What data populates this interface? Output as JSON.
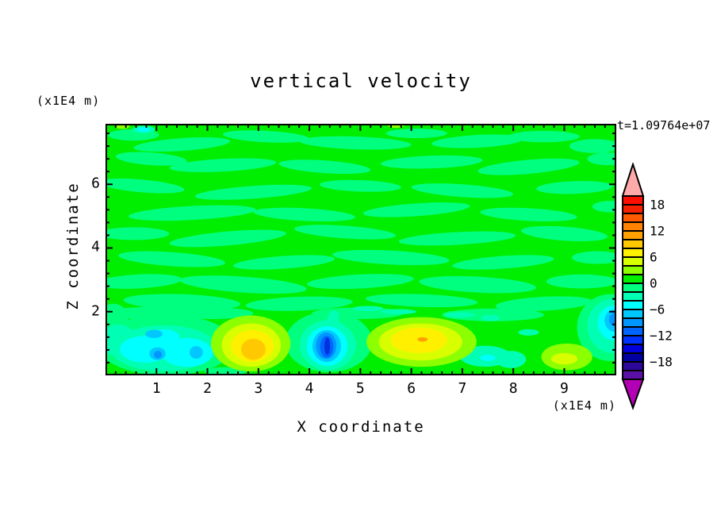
{
  "figure": {
    "title": "vertical velocity",
    "time_annotation": "t=1.09764e+07",
    "x_axis_title": "X coordinate",
    "z_axis_title": "Z coordinate",
    "x_axis_unit": "(x1E4 m)",
    "z_axis_unit": "(x1E4 m)"
  },
  "chart_data": {
    "type": "heatmap",
    "subtype": "filled-contour",
    "title": "vertical velocity",
    "xlabel": "X coordinate",
    "ylabel": "Z coordinate",
    "axis_units": "(x1E4 m)",
    "annotation": "t=1.09764e+07",
    "xlim": [
      0,
      10.02
    ],
    "zlim": [
      0,
      7.9
    ],
    "x_tick_labels": [
      1,
      2,
      3,
      4,
      5,
      6,
      7,
      8,
      9
    ],
    "z_tick_labels": [
      2,
      4,
      6
    ],
    "x_minor_step": 0.2,
    "z_minor_step": 0.4,
    "grid": false,
    "legend_position": "right-colorbar",
    "contour_interval": 2,
    "field_summary": "Near-zero vertical velocity (levels between -2 and +2) over most of the domain in mottled horizontal streaks; strong features confined below z=2: downdrafts near x=1 (about -8), x=4.4 (about -14) and right edge (about -10); updrafts near x=2.9 (about +10), x=6.2 (about +10, local +12 spot) and x=9.0 (about +6).",
    "features": [
      {
        "x": 1.1,
        "z": 0.9,
        "peak_value": -8,
        "description": "cyan/blue downdraft pool"
      },
      {
        "x": 2.9,
        "z": 0.9,
        "peak_value": 10,
        "description": "yellow-gold updraft"
      },
      {
        "x": 4.35,
        "z": 0.95,
        "peak_value": -14,
        "description": "narrow deep-blue downdraft plume"
      },
      {
        "x": 6.2,
        "z": 1.1,
        "peak_value": 12,
        "description": "broad yellow updraft, small orange core"
      },
      {
        "x": 9.0,
        "z": 0.55,
        "peak_value": 6,
        "description": "small yellow-green updraft"
      },
      {
        "x": 10.0,
        "z": 1.7,
        "peak_value": -10,
        "description": "blue downdraft at right edge"
      }
    ],
    "field_colors": {
      "background": "#00EE00",
      "negative_band": "#00FF7F"
    },
    "blob_layers": [
      {
        "level": "-2 to 0",
        "color": "#00FF7F",
        "shapes": [
          [
            0.55,
            7.55,
            0.5,
            0.18,
            0
          ],
          [
            1.5,
            7.25,
            0.95,
            0.2,
            -4
          ],
          [
            3.15,
            7.5,
            0.85,
            0.18,
            3
          ],
          [
            4.9,
            7.3,
            1.1,
            0.2,
            2
          ],
          [
            6.1,
            7.6,
            0.6,
            0.15,
            0
          ],
          [
            7.3,
            7.35,
            0.9,
            0.2,
            -3
          ],
          [
            8.6,
            7.5,
            0.7,
            0.18,
            0
          ],
          [
            9.6,
            7.2,
            0.5,
            0.22,
            0
          ],
          [
            0.9,
            6.8,
            0.7,
            0.2,
            4
          ],
          [
            2.3,
            6.6,
            1.05,
            0.2,
            -3
          ],
          [
            4.3,
            6.55,
            0.9,
            0.2,
            4
          ],
          [
            6.4,
            6.7,
            1.0,
            0.2,
            -2
          ],
          [
            8.3,
            6.55,
            1.0,
            0.22,
            -5
          ],
          [
            9.85,
            6.8,
            0.4,
            0.2,
            0
          ],
          [
            0.7,
            5.95,
            0.85,
            0.2,
            5
          ],
          [
            2.9,
            5.75,
            1.15,
            0.2,
            -4
          ],
          [
            5.0,
            5.95,
            0.8,
            0.18,
            2
          ],
          [
            7.0,
            5.8,
            1.0,
            0.2,
            4
          ],
          [
            9.2,
            5.9,
            0.75,
            0.2,
            -2
          ],
          [
            1.7,
            5.1,
            1.25,
            0.22,
            -3
          ],
          [
            3.9,
            5.05,
            1.0,
            0.2,
            3
          ],
          [
            6.1,
            5.2,
            1.05,
            0.2,
            -4
          ],
          [
            8.3,
            5.05,
            0.95,
            0.2,
            3
          ],
          [
            9.9,
            5.3,
            0.35,
            0.18,
            0
          ],
          [
            0.55,
            4.45,
            0.7,
            0.2,
            0
          ],
          [
            2.4,
            4.3,
            1.15,
            0.22,
            -5
          ],
          [
            4.7,
            4.5,
            1.0,
            0.2,
            4
          ],
          [
            6.9,
            4.3,
            1.15,
            0.2,
            -3
          ],
          [
            9.0,
            4.45,
            0.85,
            0.22,
            4
          ],
          [
            1.3,
            3.65,
            1.05,
            0.22,
            4
          ],
          [
            3.5,
            3.55,
            1.0,
            0.2,
            -4
          ],
          [
            5.6,
            3.7,
            1.15,
            0.22,
            3
          ],
          [
            7.8,
            3.55,
            1.0,
            0.2,
            -4
          ],
          [
            9.65,
            3.7,
            0.5,
            0.2,
            0
          ],
          [
            0.65,
            2.95,
            0.85,
            0.22,
            -3
          ],
          [
            2.7,
            2.85,
            1.25,
            0.25,
            4
          ],
          [
            5.0,
            2.95,
            1.05,
            0.22,
            -3
          ],
          [
            7.3,
            2.85,
            1.15,
            0.25,
            3
          ],
          [
            9.35,
            2.95,
            0.7,
            0.22,
            0
          ],
          [
            1.5,
            2.3,
            1.15,
            0.25,
            2
          ],
          [
            3.8,
            2.25,
            1.05,
            0.22,
            -2
          ],
          [
            6.2,
            2.35,
            1.1,
            0.2,
            2
          ],
          [
            8.6,
            2.25,
            0.95,
            0.22,
            -3
          ],
          [
            0.9,
            1.95,
            0.9,
            0.2,
            0
          ],
          [
            2.1,
            1.95,
            0.8,
            0.18,
            0
          ],
          [
            4.95,
            1.95,
            0.9,
            0.18,
            0
          ],
          [
            7.6,
            1.9,
            1.0,
            0.2,
            0
          ],
          [
            9.8,
            2.0,
            0.4,
            0.18,
            0
          ],
          [
            1.2,
            0.95,
            1.35,
            0.95,
            0
          ],
          [
            4.38,
            1.05,
            0.85,
            0.95,
            0
          ],
          [
            9.9,
            1.5,
            0.65,
            1.05,
            0
          ],
          [
            2.35,
            0.12,
            0.4,
            0.14,
            0
          ],
          [
            0.15,
            1.8,
            0.3,
            0.45,
            0
          ]
        ]
      },
      {
        "level": "-4 to -2",
        "color": "#00FFB4",
        "shapes": [
          [
            1.15,
            0.85,
            1.05,
            0.72,
            0
          ],
          [
            0.25,
            1.1,
            0.35,
            0.5,
            0
          ],
          [
            9.95,
            1.55,
            0.5,
            0.85,
            0
          ],
          [
            4.36,
            0.95,
            0.55,
            0.78,
            0
          ],
          [
            4.45,
            1.6,
            0.12,
            0.45,
            8
          ],
          [
            4.48,
            1.9,
            0.1,
            0.12,
            0
          ],
          [
            7.45,
            0.6,
            0.5,
            0.33,
            0
          ],
          [
            7.95,
            0.5,
            0.3,
            0.27,
            0
          ],
          [
            0.75,
            7.72,
            0.22,
            0.12,
            0
          ],
          [
            5.15,
            2.1,
            0.3,
            0.08,
            0
          ],
          [
            5.75,
            2.0,
            0.35,
            0.08,
            0
          ],
          [
            6.95,
            1.9,
            0.3,
            0.08,
            0
          ],
          [
            7.55,
            1.8,
            0.18,
            0.1,
            0
          ],
          [
            8.3,
            1.35,
            0.2,
            0.1,
            0
          ]
        ]
      },
      {
        "level": "-6 to -4",
        "color": "#00FFFF",
        "shapes": [
          [
            0.78,
            0.82,
            0.5,
            0.42,
            0
          ],
          [
            1.6,
            0.72,
            0.5,
            0.45,
            0
          ],
          [
            1.15,
            1.2,
            0.3,
            0.25,
            0
          ],
          [
            4.35,
            0.92,
            0.4,
            0.62,
            0
          ],
          [
            9.98,
            1.65,
            0.32,
            0.55,
            0
          ],
          [
            0.75,
            7.72,
            0.12,
            0.07,
            0
          ],
          [
            7.5,
            0.55,
            0.15,
            0.1,
            0
          ]
        ]
      },
      {
        "level": "-8 to -6",
        "color": "#00C8FF",
        "shapes": [
          [
            4.34,
            0.92,
            0.28,
            0.5,
            0
          ],
          [
            0.95,
            1.3,
            0.17,
            0.13,
            0
          ],
          [
            1.02,
            0.68,
            0.16,
            0.2,
            0
          ],
          [
            1.78,
            0.72,
            0.13,
            0.2,
            0
          ],
          [
            9.99,
            1.72,
            0.2,
            0.35,
            0
          ]
        ]
      },
      {
        "level": "-10 to -8",
        "color": "#0096FF",
        "shapes": [
          [
            4.33,
            0.93,
            0.2,
            0.42,
            0
          ],
          [
            10.0,
            1.75,
            0.12,
            0.22,
            0
          ],
          [
            1.03,
            0.65,
            0.08,
            0.12,
            0
          ]
        ]
      },
      {
        "level": "-12 to -10",
        "color": "#0064FF",
        "shapes": [
          [
            4.34,
            0.9,
            0.13,
            0.34,
            0
          ]
        ]
      },
      {
        "level": "-14 to -12",
        "color": "#0032DC",
        "shapes": [
          [
            4.35,
            0.92,
            0.055,
            0.27,
            0
          ]
        ]
      },
      {
        "level": "2 to 4",
        "color": "#8CFF00",
        "shapes": [
          [
            2.85,
            1.0,
            0.78,
            0.88,
            0
          ],
          [
            6.2,
            1.05,
            1.08,
            0.78,
            0
          ],
          [
            9.05,
            0.58,
            0.5,
            0.42,
            0
          ],
          [
            0.33,
            7.82,
            0.14,
            0.08,
            0
          ],
          [
            5.7,
            7.85,
            0.16,
            0.08,
            0
          ]
        ]
      },
      {
        "level": "4 to 6",
        "color": "#D8FF00",
        "shapes": [
          [
            2.86,
            0.95,
            0.58,
            0.68,
            0
          ],
          [
            6.18,
            1.05,
            0.82,
            0.58,
            0
          ],
          [
            9.0,
            0.52,
            0.26,
            0.18,
            0
          ]
        ]
      },
      {
        "level": "6 to 8",
        "color": "#FFF000",
        "shapes": [
          [
            2.88,
            0.92,
            0.42,
            0.5,
            0
          ],
          [
            6.15,
            1.1,
            0.55,
            0.4,
            0
          ]
        ]
      },
      {
        "level": "8 to 10",
        "color": "#FFC800",
        "shapes": [
          [
            2.9,
            0.82,
            0.24,
            0.33,
            0
          ]
        ]
      },
      {
        "level": "10 to 12",
        "color": "#FFA000",
        "shapes": [
          [
            6.22,
            1.13,
            0.1,
            0.07,
            0
          ]
        ]
      }
    ]
  },
  "colorbar": {
    "labels": [
      "18",
      "12",
      "6",
      "0",
      "−6",
      "−12",
      "−18"
    ],
    "cell_values_top_to_bottom": [
      20,
      18,
      16,
      14,
      12,
      10,
      8,
      6,
      4,
      2,
      0,
      -2,
      -4,
      -6,
      -8,
      -10,
      -12,
      -14,
      -16,
      -18,
      -20
    ],
    "cell_colors_top_to_bottom": [
      "#FC0F00",
      "#F52000",
      "#FF5A00",
      "#FF8200",
      "#FFA000",
      "#FFC800",
      "#FFF000",
      "#D8FF00",
      "#8CFF00",
      "#00EE00",
      "#00FF7F",
      "#00FFB4",
      "#00FFFF",
      "#00C8FF",
      "#0096FF",
      "#0064FF",
      "#0032FF",
      "#0000DC",
      "#0000A0",
      "#2D089B",
      "#5A0FA5"
    ],
    "over_color": "#FFAAAA",
    "under_color": "#B400B4"
  }
}
